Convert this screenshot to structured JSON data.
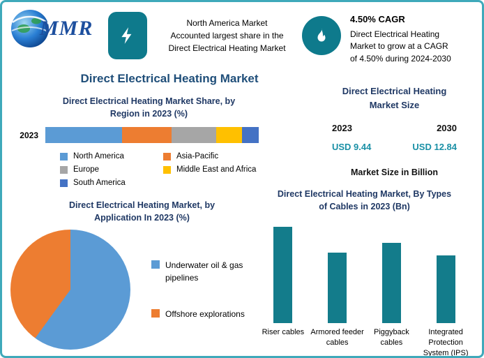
{
  "page": {
    "title": "Direct Electrical Heating Market",
    "accent_teal": "#0e7a8c",
    "border_color": "#3fa9ba",
    "heading_color": "#1f3864",
    "value_color": "#1a90a6"
  },
  "logo": {
    "text": "MMR"
  },
  "header": {
    "highlight_lines": [
      "North America Market",
      "Accounted largest share in the",
      "Direct Electrical Heating Market"
    ],
    "cagr_title": "4.50% CAGR",
    "cagr_lines": [
      "Direct Electrical Heating",
      "Market to grow at a CAGR",
      "of 4.50% during 2024-2030"
    ]
  },
  "market_size": {
    "heading": "Direct Electrical Heating Market Size",
    "years": [
      "2023",
      "2030"
    ],
    "values": [
      "USD 9.44",
      "USD 12.84"
    ],
    "note": "Market Size in Billion"
  },
  "chart_data": [
    {
      "type": "bar",
      "variant": "stacked-horizontal",
      "title": "Direct Electrical Heating Market Share, by Region in 2023 (%)",
      "categories": [
        "2023"
      ],
      "series": [
        {
          "name": "North America",
          "values": [
            36
          ],
          "color": "#5b9bd5"
        },
        {
          "name": "Asia-Pacific",
          "values": [
            23
          ],
          "color": "#ed7d31"
        },
        {
          "name": "Europe",
          "values": [
            21
          ],
          "color": "#a6a6a6"
        },
        {
          "name": "Middle East and Africa",
          "values": [
            12
          ],
          "color": "#ffc000"
        },
        {
          "name": "South America",
          "values": [
            8
          ],
          "color": "#4472c4"
        }
      ],
      "xlim": [
        0,
        100
      ],
      "legend_position": "bottom"
    },
    {
      "type": "pie",
      "title": "Direct Electrical Heating Market, by Application In 2023 (%)",
      "slices": [
        {
          "label": "Underwater oil & gas pipelines",
          "value": 60,
          "color": "#5b9bd5"
        },
        {
          "label": "Offshore explorations",
          "value": 40,
          "color": "#ed7d31"
        }
      ],
      "legend_position": "right"
    },
    {
      "type": "bar",
      "title": "Direct Electrical Heating Market, By Types of Cables in 2023 (Bn)",
      "categories": [
        "Riser cables",
        "Armored feeder cables",
        "Piggyback cables",
        "Integrated Protection System (IPS)"
      ],
      "values": [
        3.0,
        2.2,
        2.5,
        2.1
      ],
      "bar_color": "#137c8b",
      "ylim": [
        0,
        3.2
      ]
    }
  ]
}
